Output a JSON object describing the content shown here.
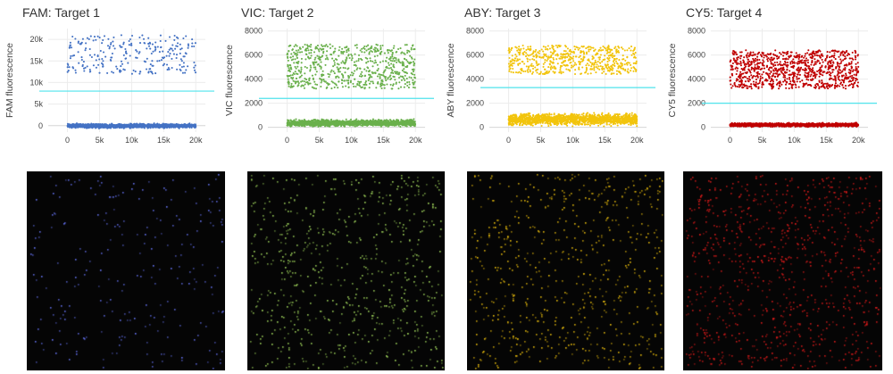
{
  "chart_data": [
    {
      "type": "scatter",
      "title": "FAM: Target 1",
      "ylabel": "FAM fluorescence",
      "color": "#4472c4",
      "xlim": [
        -3000,
        21500
      ],
      "ylim": [
        -1500,
        22500
      ],
      "xticks": [
        0,
        5000,
        10000,
        15000,
        20000
      ],
      "xtick_labels": [
        "0",
        "5k",
        "10k",
        "15k",
        "20k"
      ],
      "yticks": [
        0,
        5000,
        10000,
        15000,
        20000
      ],
      "ytick_labels": [
        "0",
        "5k",
        "10k",
        "15k",
        "20k"
      ],
      "threshold": 8000,
      "positive_band": [
        12000,
        21000
      ],
      "negative_band": [
        -700,
        600
      ],
      "positive_count": 260,
      "negative_count": 1400
    },
    {
      "type": "scatter",
      "title": "VIC: Target 2",
      "ylabel": "VIC fluorescence",
      "color": "#6ab04c",
      "xlim": [
        -3000,
        21500
      ],
      "ylim": [
        -400,
        8200
      ],
      "xticks": [
        0,
        5000,
        10000,
        15000,
        20000
      ],
      "xtick_labels": [
        "0",
        "5k",
        "10k",
        "15k",
        "20k"
      ],
      "yticks": [
        0,
        2000,
        4000,
        6000,
        8000
      ],
      "ytick_labels": [
        "0",
        "2000",
        "4000",
        "6000",
        "8000"
      ],
      "threshold": 2400,
      "positive_band": [
        3200,
        6900
      ],
      "negative_band": [
        0,
        700
      ],
      "positive_count": 700,
      "negative_count": 1500
    },
    {
      "type": "scatter",
      "title": "ABY: Target 3",
      "ylabel": "ABY fluorescence",
      "color": "#f2c40c",
      "xlim": [
        -3000,
        21500
      ],
      "ylim": [
        -400,
        8200
      ],
      "xticks": [
        0,
        5000,
        10000,
        15000,
        20000
      ],
      "xtick_labels": [
        "0",
        "5k",
        "10k",
        "15k",
        "20k"
      ],
      "yticks": [
        0,
        2000,
        4000,
        6000,
        8000
      ],
      "ytick_labels": [
        "0",
        "2000",
        "4000",
        "6000",
        "8000"
      ],
      "threshold": 3300,
      "positive_band": [
        4400,
        6800
      ],
      "negative_band": [
        0,
        1300
      ],
      "positive_count": 600,
      "negative_count": 1500
    },
    {
      "type": "scatter",
      "title": "CY5: Target 4",
      "ylabel": "CY5 fluorescence",
      "color": "#c00000",
      "xlim": [
        -3000,
        21500
      ],
      "ylim": [
        -400,
        8200
      ],
      "xticks": [
        0,
        5000,
        10000,
        15000,
        20000
      ],
      "xtick_labels": [
        "0",
        "5k",
        "10k",
        "15k",
        "20k"
      ],
      "yticks": [
        0,
        2000,
        4000,
        6000,
        8000
      ],
      "ytick_labels": [
        "0",
        "2000",
        "4000",
        "6000",
        "8000"
      ],
      "threshold": 2000,
      "positive_band": [
        3200,
        6400
      ],
      "negative_band": [
        0,
        400
      ],
      "positive_count": 1000,
      "negative_count": 1400
    }
  ],
  "chamber_images": [
    {
      "channel": "FAM",
      "dot_color": "#6a78ff",
      "dot_count": 240
    },
    {
      "channel": "VIC",
      "dot_color": "#a8e060",
      "dot_count": 650
    },
    {
      "channel": "ABY",
      "dot_color": "#f2c40c",
      "dot_count": 620
    },
    {
      "channel": "CY5",
      "dot_color": "#e21b1b",
      "dot_count": 900
    }
  ]
}
